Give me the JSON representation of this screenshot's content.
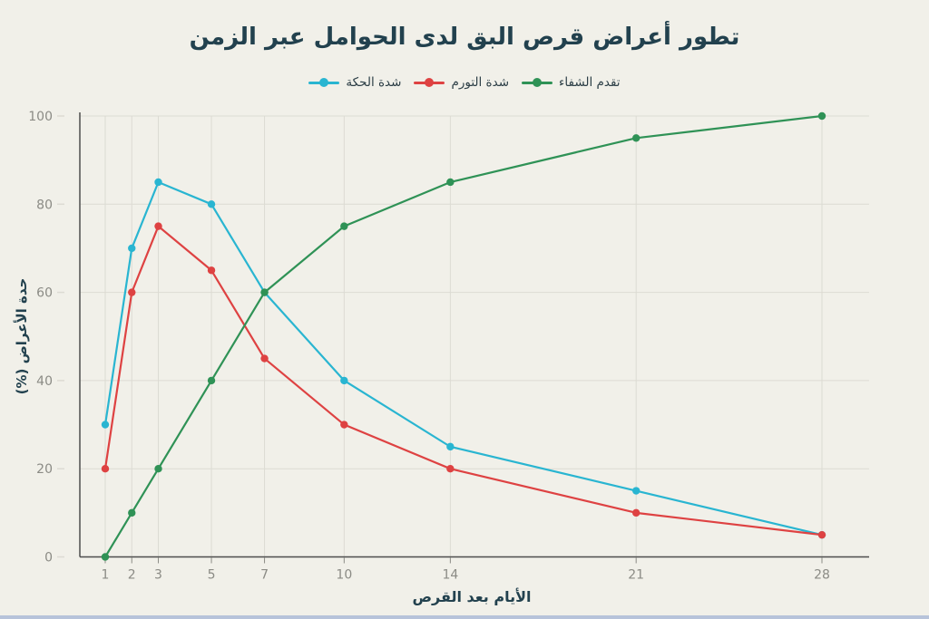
{
  "page": {
    "title": "تطور أعراض قرص البق لدى الحوامل عبر الزمن",
    "bottom_bar_color": "#b7c3da"
  },
  "colors": {
    "background": "#f1f0e9",
    "title_text": "#22414e",
    "grid": "#dcdbd3",
    "tick_text": "#8b8b85",
    "axis_line": "#4d4d4d",
    "itching": "#29b5d1",
    "swelling": "#de4242",
    "healing": "#2f9256"
  },
  "chart_data": {
    "type": "line",
    "title": "تطور أعراض قرص البق لدى الحوامل عبر الزمن",
    "xlabel": "الأيام بعد القرص",
    "ylabel": "حدة الأعراض (%)",
    "x": [
      1,
      2,
      3,
      5,
      7,
      10,
      14,
      21,
      28
    ],
    "x_tick_labels": [
      "1",
      "2",
      "3",
      "5",
      "7",
      "10",
      "14",
      "21",
      "28"
    ],
    "y_ticks": [
      0,
      20,
      40,
      60,
      80,
      100
    ],
    "xlim": [
      1,
      28
    ],
    "ylim": [
      0,
      100
    ],
    "grid": true,
    "legend_position": "top",
    "series": [
      {
        "name": "شدة الحكة",
        "color": "#29b5d1",
        "marker": "circle",
        "values": [
          30,
          70,
          85,
          80,
          60,
          40,
          25,
          15,
          5
        ]
      },
      {
        "name": "شدة التورم",
        "color": "#de4242",
        "marker": "circle",
        "values": [
          20,
          60,
          75,
          65,
          45,
          30,
          20,
          10,
          5
        ]
      },
      {
        "name": "تقدم الشفاء",
        "color": "#2f9256",
        "marker": "circle",
        "values": [
          0,
          10,
          20,
          40,
          60,
          75,
          85,
          95,
          100
        ]
      }
    ]
  }
}
